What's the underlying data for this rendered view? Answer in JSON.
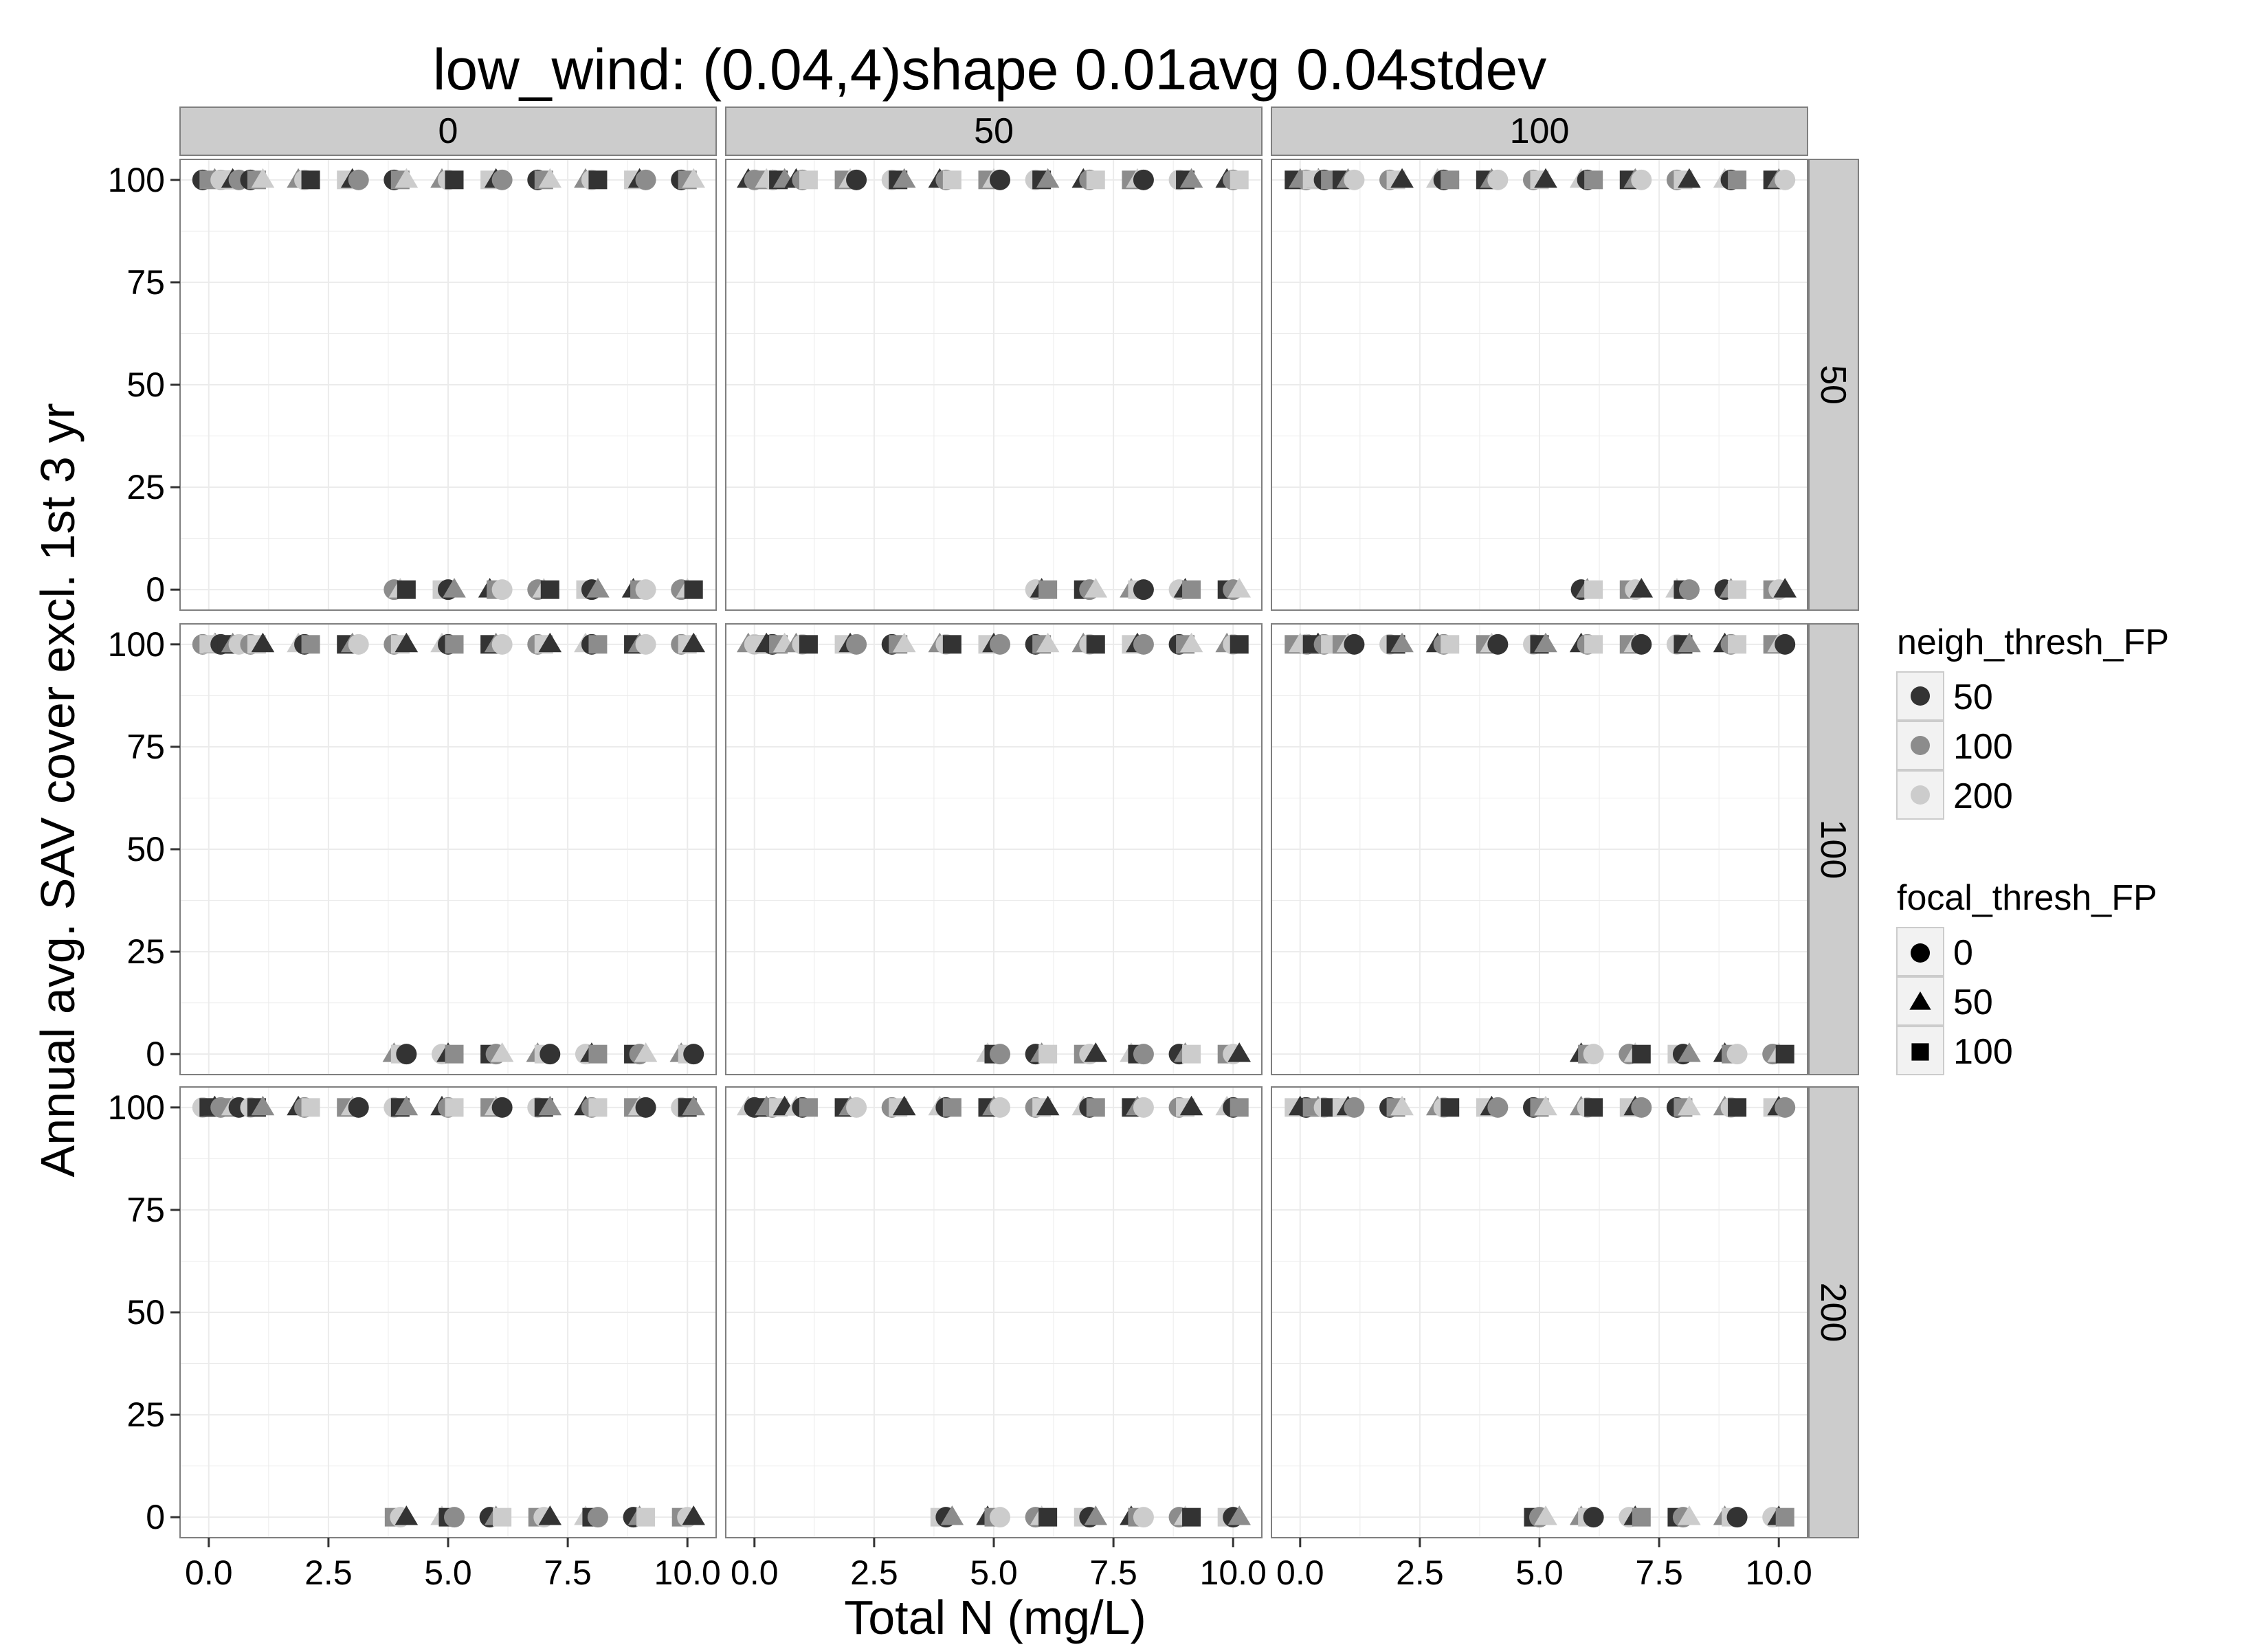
{
  "chart_data": {
    "type": "scatter",
    "title": "low_wind: (0.04,4)shape 0.01avg 0.04stdev",
    "xlabel": "Total N (mg/L)",
    "ylabel": "Annual avg. SAV cover excl. 1st 3 yr",
    "xlim": [
      -0.6,
      10.6
    ],
    "ylim": [
      -5,
      105
    ],
    "x_ticks": [
      "0.0",
      "2.5",
      "5.0",
      "7.5",
      "10.0"
    ],
    "x_tick_values": [
      0,
      2.5,
      5,
      7.5,
      10
    ],
    "y_ticks": [
      "0",
      "25",
      "50",
      "75",
      "100"
    ],
    "y_tick_values": [
      0,
      25,
      50,
      75,
      100
    ],
    "grid": true,
    "facet_columns": [
      "0",
      "50",
      "100"
    ],
    "facet_rows": [
      "50",
      "100",
      "200"
    ],
    "legend_position": "right",
    "legends": [
      {
        "title": "neigh_thresh_FP",
        "aesthetic": "colour",
        "entries": [
          {
            "label": "50",
            "color": "#333333"
          },
          {
            "label": "100",
            "color": "#8c8c8c"
          },
          {
            "label": "200",
            "color": "#cccccc"
          }
        ]
      },
      {
        "title": "focal_thresh_FP",
        "aesthetic": "shape",
        "entries": [
          {
            "label": "0",
            "shape": "circle"
          },
          {
            "label": "50",
            "shape": "triangle"
          },
          {
            "label": "100",
            "shape": "square"
          }
        ]
      }
    ],
    "colors": {
      "panel_bg": "#ffffff",
      "grid": "#ebebeb",
      "strip_bg": "#cccccc",
      "border": "#7f7f7f"
    },
    "panels": [
      {
        "col": "0",
        "row": "50",
        "x_high": [
          0,
          0.25,
          0.5,
          1,
          2,
          3,
          4,
          5,
          6,
          7,
          8,
          9,
          10
        ],
        "x_low": [
          4,
          5,
          6,
          7,
          8,
          9,
          10
        ]
      },
      {
        "col": "50",
        "row": "50",
        "x_high": [
          0,
          0.25,
          0.5,
          1,
          2,
          3,
          4,
          5,
          6,
          7,
          8,
          9,
          10
        ],
        "x_low": [
          6,
          7,
          8,
          9,
          10
        ]
      },
      {
        "col": "100",
        "row": "50",
        "x_high": [
          0,
          0.25,
          0.5,
          1,
          2,
          3,
          4,
          5,
          6,
          7,
          8,
          9,
          10
        ],
        "x_low": [
          6,
          7,
          8,
          9,
          10
        ]
      },
      {
        "col": "0",
        "row": "100",
        "x_high": [
          0,
          0.25,
          0.5,
          1,
          2,
          3,
          4,
          5,
          6,
          7,
          8,
          9,
          10
        ],
        "x_low": [
          4,
          5,
          6,
          7,
          8,
          9,
          10
        ]
      },
      {
        "col": "50",
        "row": "100",
        "x_high": [
          0,
          0.25,
          0.5,
          1,
          2,
          3,
          4,
          5,
          6,
          7,
          8,
          9,
          10
        ],
        "x_low": [
          5,
          6,
          7,
          8,
          9,
          10
        ]
      },
      {
        "col": "100",
        "row": "100",
        "x_high": [
          0,
          0.25,
          0.5,
          1,
          2,
          3,
          4,
          5,
          6,
          7,
          8,
          9,
          10
        ],
        "x_low": [
          6,
          7,
          8,
          9,
          10
        ]
      },
      {
        "col": "0",
        "row": "200",
        "x_high": [
          0,
          0.25,
          0.5,
          1,
          2,
          3,
          4,
          5,
          6,
          7,
          8,
          9,
          10
        ],
        "x_low": [
          4,
          5,
          6,
          7,
          8,
          9,
          10
        ]
      },
      {
        "col": "50",
        "row": "200",
        "x_high": [
          0,
          0.25,
          0.5,
          1,
          2,
          3,
          4,
          5,
          6,
          7,
          8,
          9,
          10
        ],
        "x_low": [
          4,
          5,
          6,
          7,
          8,
          9,
          10
        ]
      },
      {
        "col": "100",
        "row": "200",
        "x_high": [
          0,
          0.25,
          0.5,
          1,
          2,
          3,
          4,
          5,
          6,
          7,
          8,
          9,
          10
        ],
        "x_low": [
          5,
          6,
          7,
          8,
          9,
          10
        ]
      }
    ]
  }
}
